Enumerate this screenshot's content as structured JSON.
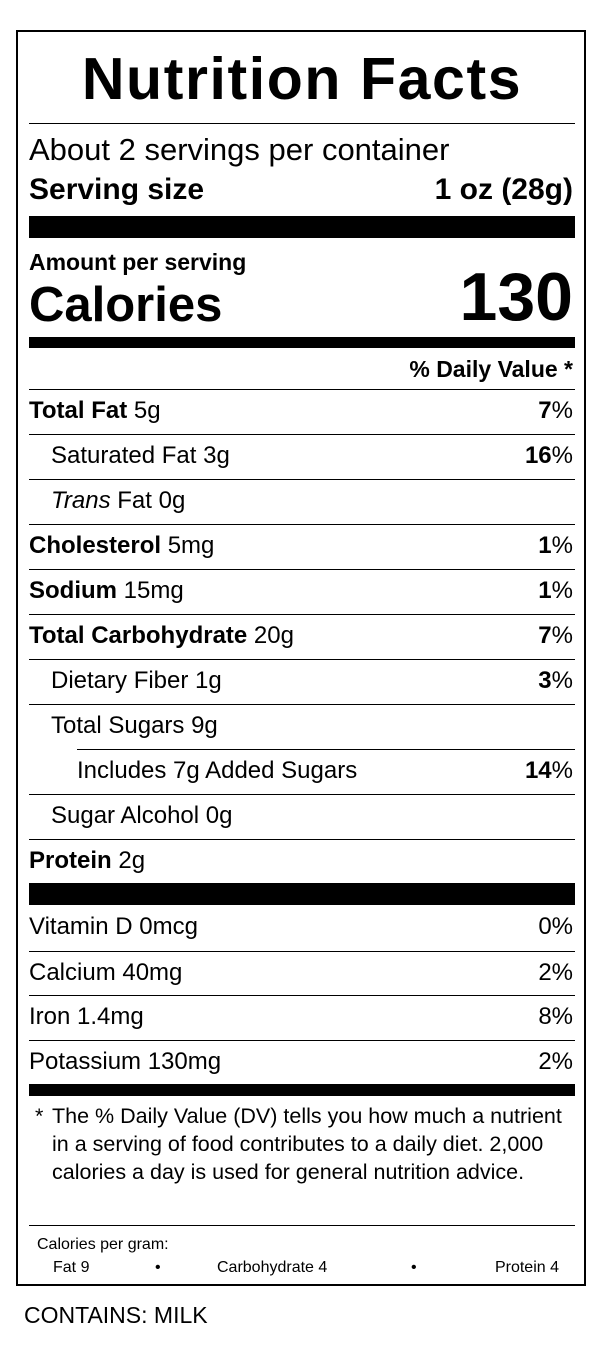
{
  "title": "Nutrition Facts",
  "servings_per_container": "About 2 servings per container",
  "serving_size": {
    "label": "Serving size",
    "value": "1 oz (28g)"
  },
  "amount_per_serving": "Amount per serving",
  "calories": {
    "label": "Calories",
    "value": "130"
  },
  "daily_value_header": "% Daily Value *",
  "nutrients": [
    {
      "name": "Total Fat",
      "amount": "5g",
      "bold": true,
      "dv_num": "7",
      "dv_sym": "%"
    },
    {
      "name": "Saturated Fat",
      "amount": "3g",
      "indent": 1,
      "dv_num": "16",
      "dv_sym": "%"
    },
    {
      "name_italic": "Trans",
      "name": "Fat",
      "amount": "0g",
      "indent": 1,
      "dv_num": "",
      "dv_sym": ""
    },
    {
      "name": "Cholesterol",
      "amount": "5mg",
      "bold": true,
      "dv_num": "1",
      "dv_sym": "%"
    },
    {
      "name": "Sodium",
      "amount": "15mg",
      "bold": true,
      "dv_num": "1",
      "dv_sym": "%"
    },
    {
      "name": "Total Carbohydrate",
      "amount": "20g",
      "bold": true,
      "dv_num": "7",
      "dv_sym": "%"
    },
    {
      "name": "Dietary Fiber",
      "amount": "1g",
      "indent": 1,
      "dv_num": "3",
      "dv_sym": "%"
    },
    {
      "name": "Total Sugars",
      "amount": "9g",
      "indent": 1,
      "dv_num": "",
      "dv_sym": ""
    },
    {
      "name": "Includes 7g Added Sugars",
      "amount": "",
      "indent": 2,
      "dv_num": "14",
      "dv_sym": "%"
    },
    {
      "name": "Sugar Alcohol",
      "amount": "0g",
      "indent": 1,
      "dv_num": "",
      "dv_sym": ""
    },
    {
      "name": "Protein",
      "amount": "2g",
      "bold": true,
      "dv_num": "",
      "dv_sym": ""
    }
  ],
  "vitamins": [
    {
      "label": "Vitamin D 0mcg",
      "dv": "0%"
    },
    {
      "label": "Calcium 40mg",
      "dv": "2%"
    },
    {
      "label": "Iron 1.4mg",
      "dv": "8%"
    },
    {
      "label": "Potassium 130mg",
      "dv": "2%"
    }
  ],
  "footnote": {
    "star": "*",
    "text": "The % Daily Value (DV) tells you how much a nutrient in a serving of food contributes to a daily diet. 2,000 calories a day is used for general nutrition advice."
  },
  "calories_per_gram": {
    "label": "Calories per gram:",
    "fat": "Fat 9",
    "carbohydrate": "Carbohydrate 4",
    "protein": "Protein 4",
    "bullet": "•"
  },
  "allergens": "CONTAINS: MILK"
}
